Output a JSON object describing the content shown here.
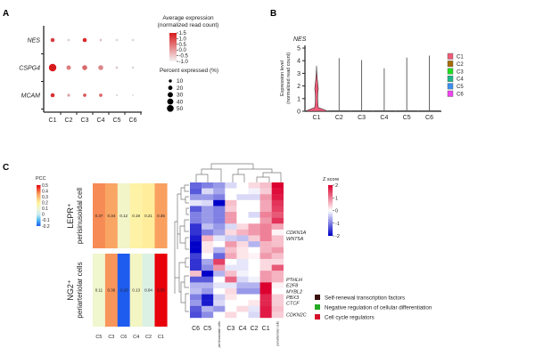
{
  "panels": {
    "a": "A",
    "b": "B",
    "c": "C"
  },
  "chart_data": [
    {
      "type": "scatter",
      "subtype": "dot-plot",
      "genes": [
        "NES",
        "CSPG4",
        "MCAM"
      ],
      "categories": [
        "C1",
        "C2",
        "C3",
        "C4",
        "C5",
        "C6"
      ],
      "avg_expression": [
        [
          1.0,
          -0.8,
          1.3,
          -0.6,
          -0.9,
          -0.9
        ],
        [
          1.5,
          0.2,
          0.5,
          0.1,
          -0.8,
          -0.9
        ],
        [
          1.2,
          -0.3,
          0.7,
          0.5,
          -1.0,
          -1.0
        ]
      ],
      "percent_expressed": [
        [
          15,
          5,
          15,
          5,
          5,
          5
        ],
        [
          50,
          18,
          22,
          22,
          6,
          5
        ],
        [
          15,
          8,
          10,
          10,
          4,
          3
        ]
      ],
      "color_legend": {
        "title": "Average expression",
        "subtitle": "(normalized read count)",
        "ticks": [
          "1.5",
          "1.0",
          "0.5",
          "0.0",
          "-0.5",
          "-1.0"
        ],
        "range": [
          -1.0,
          1.5
        ],
        "colors": [
          "#dedede",
          "#d7191c"
        ]
      },
      "size_legend": {
        "title": "Percent expressed (%)",
        "values": [
          "10",
          "20",
          "30",
          "40",
          "50"
        ]
      }
    },
    {
      "type": "violin",
      "title": "NES",
      "ylabel": "Expression level",
      "ylabel2": "(normalized read count)",
      "categories": [
        "C1",
        "C2",
        "C3",
        "C4",
        "C5",
        "C6"
      ],
      "yticks": [
        "0",
        "1",
        "2",
        "3",
        "4",
        "5"
      ],
      "ylim": [
        0,
        5
      ],
      "max_values": [
        3.6,
        4.2,
        4.05,
        3.4,
        4.25,
        4.4
      ],
      "legend": [
        {
          "name": "C1",
          "color": "#f05a78"
        },
        {
          "name": "C2",
          "color": "#a86a00"
        },
        {
          "name": "C3",
          "color": "#22dd22"
        },
        {
          "name": "C4",
          "color": "#1fb88a"
        },
        {
          "name": "C5",
          "color": "#3d8ef0"
        },
        {
          "name": "C6",
          "color": "#ee44ee"
        }
      ]
    },
    {
      "type": "heatmap",
      "rows": [
        {
          "line1": "LEPR⁺",
          "line2": "perisinusoidal cell"
        },
        {
          "line1": "NG2⁺",
          "line2": "periarteriolar cells"
        }
      ],
      "categories": [
        "C5",
        "C3",
        "C6",
        "C4",
        "C2",
        "C1"
      ],
      "values": [
        [
          0.37,
          0.34,
          0.12,
          0.19,
          0.21,
          0.35
        ],
        [
          0.11,
          0.36,
          -0.2,
          0.13,
          0.04,
          0.56
        ]
      ],
      "value_labels": [
        [
          "0.37",
          "0.34",
          "0.12",
          "0.19",
          "0.21",
          "0.35"
        ],
        [
          "0.11",
          "0.36",
          "-0.20",
          "0.13",
          "0.04",
          "0.56"
        ]
      ],
      "legend": {
        "title": "PCC",
        "ticks": [
          "0.5",
          "0.4",
          "0.3",
          "0.2",
          "0.1",
          "0",
          "-0.1",
          "-0.2"
        ],
        "range": [
          -0.2,
          0.5
        ]
      }
    },
    {
      "type": "heatmap",
      "columns": [
        "C6",
        "C5",
        "perisinusoidal cells",
        "C3",
        "C4",
        "C2",
        "C1",
        "periarteriolar cells"
      ],
      "values": [
        [
          -1.2,
          -1.0,
          -0.8,
          -0.3,
          0,
          0.3,
          0.5,
          2
        ],
        [
          -1.3,
          -0.3,
          -0.7,
          0,
          0,
          -0.1,
          0.4,
          1.9
        ],
        [
          -0.8,
          -0.8,
          -1.0,
          0,
          -0.3,
          -0.3,
          0.8,
          1.8
        ],
        [
          -0.2,
          -0.3,
          -2,
          0.5,
          0,
          0,
          0.7,
          1.6
        ],
        [
          -1.3,
          -0.8,
          -1.0,
          0.4,
          0,
          0,
          0.7,
          1.5
        ],
        [
          -1.0,
          -0.8,
          -1.0,
          0.8,
          0,
          -0.3,
          1.0,
          1.3
        ],
        [
          -1.0,
          -0.8,
          -1.0,
          0.8,
          0,
          0,
          0.8,
          1.6
        ],
        [
          -1.6,
          -0.5,
          -0.8,
          -0.3,
          0.3,
          0.8,
          1.0,
          0.7
        ],
        [
          -1.6,
          -1.0,
          -0.7,
          0.3,
          0.6,
          0.8,
          1.0,
          0.1
        ],
        [
          -1.8,
          0.6,
          -0.2,
          -0.4,
          -0.5,
          0.4,
          1.0,
          0.5
        ],
        [
          -2,
          0.2,
          0,
          0.8,
          0.3,
          -0.6,
          0.6,
          0.5
        ],
        [
          -2,
          0.2,
          -0.6,
          0.5,
          0.2,
          0,
          0.6,
          0.8
        ],
        [
          -1.5,
          0,
          -1.2,
          0.7,
          0.2,
          0.1,
          0.8,
          0.5
        ],
        [
          -1.6,
          -0.7,
          1.5,
          0,
          -0.2,
          0,
          0.3,
          0.3
        ],
        [
          -1.6,
          -0.9,
          0.8,
          -0.2,
          -0.2,
          0,
          0.3,
          1.3
        ],
        [
          0.5,
          -2,
          -0.6,
          0.5,
          -0.1,
          0,
          0.8,
          0.6
        ],
        [
          -1.3,
          -1.3,
          0,
          1.2,
          -0.3,
          -0.1,
          0.8,
          0.6
        ],
        [
          -0.6,
          -0.6,
          -0.2,
          -0.2,
          -0.6,
          -0.6,
          2,
          0.1
        ],
        [
          -0.5,
          -0.8,
          0,
          0.3,
          -0.8,
          -0.8,
          2,
          0
        ],
        [
          -1.0,
          -1.8,
          -0.4,
          0.2,
          0,
          0,
          1.7,
          0.4
        ],
        [
          -0.8,
          -1.8,
          -0.3,
          0,
          0,
          0.2,
          1.7,
          0.4
        ],
        [
          -1.3,
          -0.6,
          -0.8,
          0,
          0.3,
          -0.2,
          1.8,
          0.5
        ],
        [
          -1.4,
          -0.9,
          0,
          0.3,
          0,
          -0.3,
          1.8,
          0.4
        ]
      ],
      "row_labels": [
        {
          "row": 8,
          "text": "CDKN1A",
          "color": "#c8234a"
        },
        {
          "row": 9,
          "text": "WNT5A",
          "color": "#22aa22"
        },
        {
          "row": 16,
          "text": "PTHLH",
          "color": "#22aa22"
        },
        {
          "row": 17,
          "text": "E2F8",
          "color": "#4a2020"
        },
        {
          "row": 18,
          "text": "MYBL2",
          "color": "#4a2020"
        },
        {
          "row": 19,
          "text": "PBX3",
          "color": "#4a2020"
        },
        {
          "row": 20,
          "text": "CTCF",
          "color": "#4a2020"
        },
        {
          "row": 22,
          "text": "CDKN2C",
          "color": "#c8234a"
        }
      ],
      "legend": {
        "title": "Z score",
        "ticks": [
          "2",
          "1",
          "0",
          "-1",
          "-2"
        ],
        "range": [
          -2,
          2
        ],
        "colors": [
          "#0000c8",
          "#ffffff",
          "#dc0030"
        ]
      }
    }
  ],
  "category_legend": [
    {
      "label": "Self-renewal transcription factors",
      "color": "#3b1010"
    },
    {
      "label": "Negative regulation of cellular differentiation",
      "color": "#22aa22"
    },
    {
      "label": "Cell cycle regulators",
      "color": "#d4102a"
    }
  ]
}
